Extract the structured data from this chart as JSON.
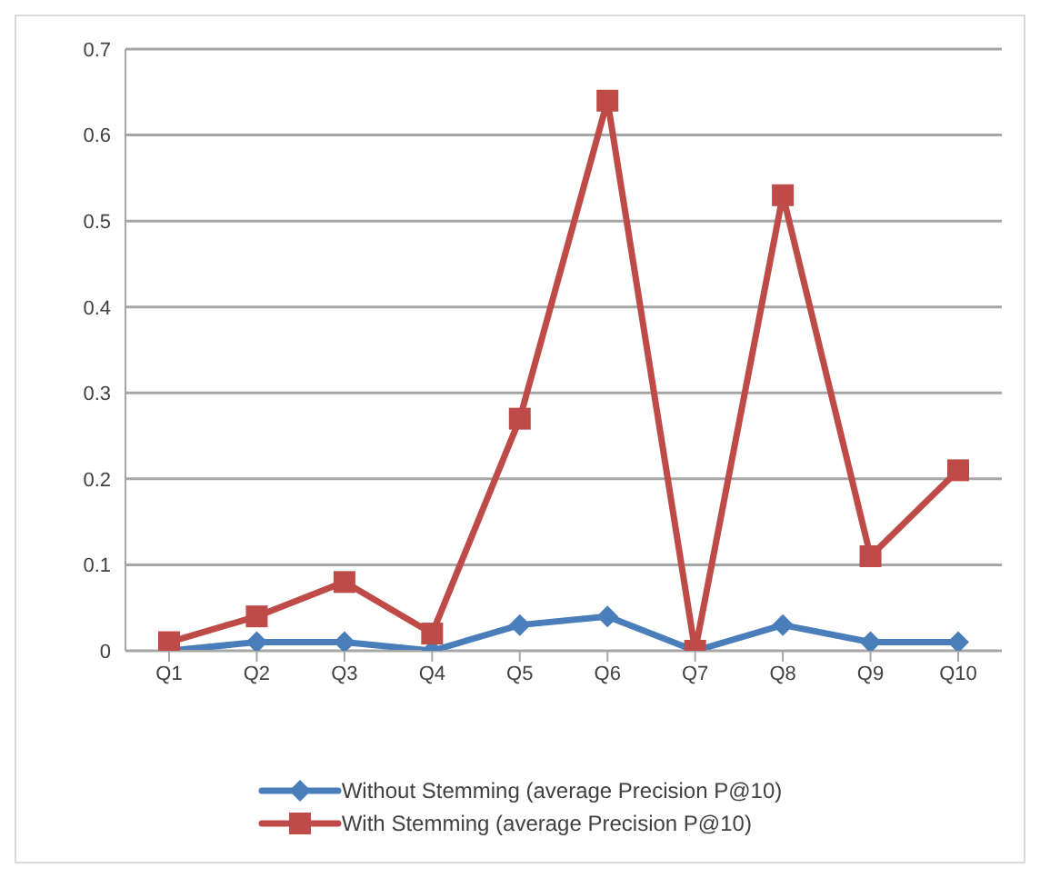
{
  "chart_data": {
    "type": "line",
    "categories": [
      "Q1",
      "Q2",
      "Q3",
      "Q4",
      "Q5",
      "Q6",
      "Q7",
      "Q8",
      "Q9",
      "Q10"
    ],
    "series": [
      {
        "name": "Without Stemming (average Precision P@10)",
        "color": "#4a7ebb",
        "marker": "diamond",
        "values": [
          0,
          0.01,
          0.01,
          0,
          0.03,
          0.04,
          0,
          0.03,
          0.01,
          0.01
        ]
      },
      {
        "name": "With Stemming (average Precision P@10)",
        "color": "#be4b48",
        "marker": "square",
        "values": [
          0.01,
          0.04,
          0.08,
          0.02,
          0.27,
          0.64,
          0,
          0.53,
          0.11,
          0.21
        ]
      }
    ],
    "ylim": [
      0,
      0.7
    ],
    "yticks": [
      0,
      0.1,
      0.2,
      0.3,
      0.4,
      0.5,
      0.6,
      0.7
    ],
    "grid": "y",
    "legend": "bottom",
    "line_style": "solid"
  }
}
